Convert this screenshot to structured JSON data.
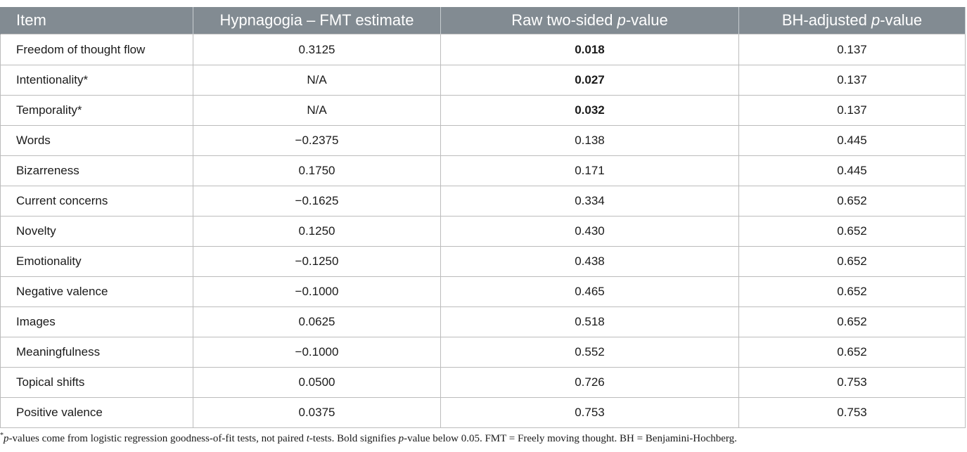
{
  "table": {
    "headers": {
      "item": "Item",
      "estimate": "Hypnagogia – FMT estimate",
      "raw_p_prefix": "Raw two-sided ",
      "raw_p_italic": "p",
      "raw_p_suffix": "-value",
      "bh_p_prefix": "BH-adjusted ",
      "bh_p_italic": "p",
      "bh_p_suffix": "-value"
    },
    "rows": [
      {
        "item": "Freedom of thought flow",
        "estimate": "0.3125",
        "raw_p": "0.018",
        "raw_bold": true,
        "bh_p": "0.137"
      },
      {
        "item": "Intentionality*",
        "estimate": "N/A",
        "raw_p": "0.027",
        "raw_bold": true,
        "bh_p": "0.137"
      },
      {
        "item": "Temporality*",
        "estimate": "N/A",
        "raw_p": "0.032",
        "raw_bold": true,
        "bh_p": "0.137"
      },
      {
        "item": "Words",
        "estimate": "−0.2375",
        "raw_p": "0.138",
        "raw_bold": false,
        "bh_p": "0.445"
      },
      {
        "item": "Bizarreness",
        "estimate": "0.1750",
        "raw_p": "0.171",
        "raw_bold": false,
        "bh_p": "0.445"
      },
      {
        "item": "Current concerns",
        "estimate": "−0.1625",
        "raw_p": "0.334",
        "raw_bold": false,
        "bh_p": "0.652"
      },
      {
        "item": "Novelty",
        "estimate": "0.1250",
        "raw_p": "0.430",
        "raw_bold": false,
        "bh_p": "0.652"
      },
      {
        "item": "Emotionality",
        "estimate": "−0.1250",
        "raw_p": "0.438",
        "raw_bold": false,
        "bh_p": "0.652"
      },
      {
        "item": "Negative valence",
        "estimate": "−0.1000",
        "raw_p": "0.465",
        "raw_bold": false,
        "bh_p": "0.652"
      },
      {
        "item": "Images",
        "estimate": "0.0625",
        "raw_p": "0.518",
        "raw_bold": false,
        "bh_p": "0.652"
      },
      {
        "item": "Meaningfulness",
        "estimate": "−0.1000",
        "raw_p": "0.552",
        "raw_bold": false,
        "bh_p": "0.652"
      },
      {
        "item": "Topical shifts",
        "estimate": "0.0500",
        "raw_p": "0.726",
        "raw_bold": false,
        "bh_p": "0.753"
      },
      {
        "item": "Positive valence",
        "estimate": "0.0375",
        "raw_p": "0.753",
        "raw_bold": false,
        "bh_p": "0.753"
      }
    ]
  },
  "footnote": {
    "marker": "*",
    "p1": "p",
    "t1": "-values come from logistic regression goodness-of-fit tests, not paired ",
    "p2": "t",
    "t2": "-tests. Bold signifies ",
    "p3": "p",
    "t3": "-value below 0.05. FMT = Freely moving thought. BH = Benjamini-Hochberg."
  }
}
